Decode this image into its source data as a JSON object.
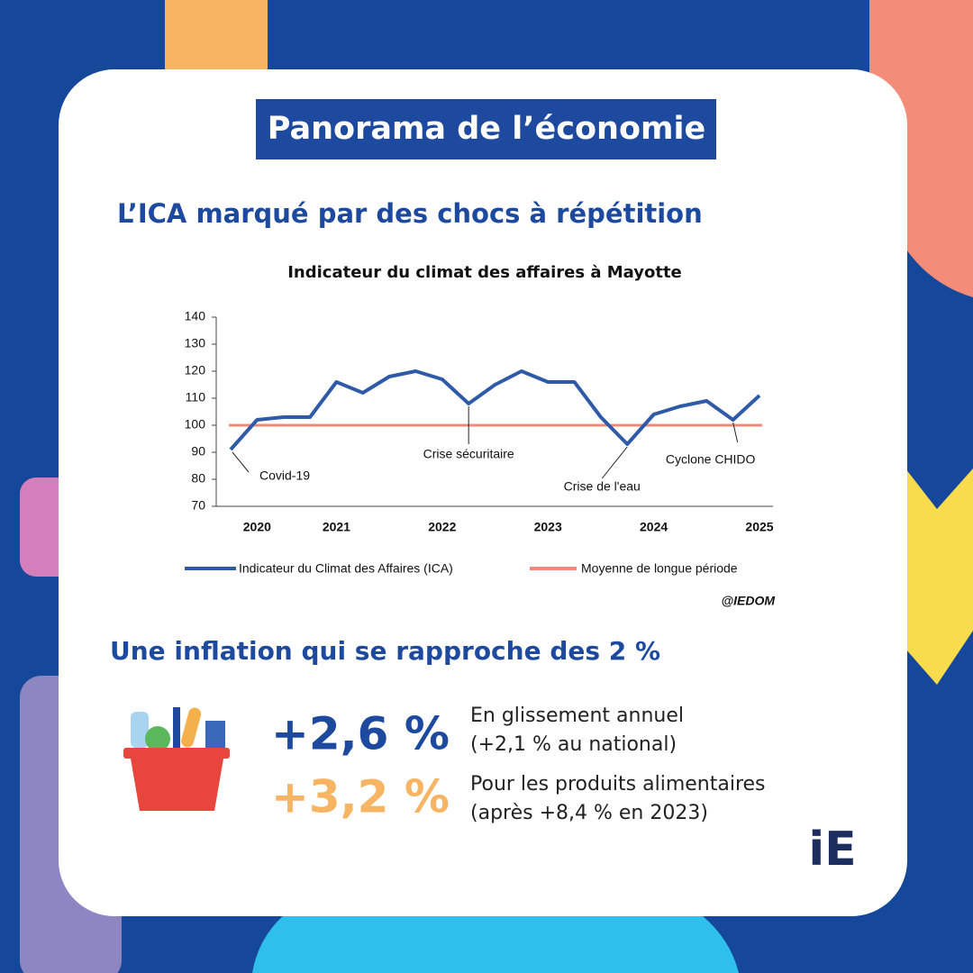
{
  "header": {
    "title": "Panorama de l’économie"
  },
  "section_1": {
    "title": "L’ICA marqué par des chocs à répétition"
  },
  "chart_data": {
    "type": "line",
    "title": "Indicateur du climat des affaires à Mayotte",
    "categories": [
      null,
      "2020",
      null,
      null,
      "2021",
      null,
      null,
      null,
      "2022",
      null,
      null,
      null,
      "2023",
      null,
      null,
      null,
      "2024",
      null,
      null,
      null,
      "2025"
    ],
    "series": [
      {
        "name": "Indicateur du Climat des Affaires (ICA)",
        "color": "#2f5aa8",
        "values": [
          91,
          102,
          103,
          103,
          116,
          112,
          118,
          120,
          117,
          108,
          115,
          120,
          116,
          116,
          103,
          93,
          104,
          107,
          109,
          102,
          111
        ]
      }
    ],
    "reference_line": {
      "name": "Moyenne de longue période",
      "value": 100,
      "color": "#f08a78"
    },
    "ylim": [
      70,
      140
    ],
    "yticks": [
      70,
      80,
      90,
      100,
      110,
      120,
      130,
      140
    ],
    "annotations": [
      {
        "text": "Covid-19",
        "index": 0
      },
      {
        "text": "Crise sécuritaire",
        "index": 9
      },
      {
        "text": "Crise de l'eau",
        "index": 15
      },
      {
        "text": "Cyclone CHIDO",
        "index": 19
      }
    ],
    "source": "@IEDOM"
  },
  "section_2": {
    "title": "Une inflation qui se rapproche des 2 %",
    "stats": [
      {
        "value": "+2,6 %",
        "line1": "En glissement annuel",
        "line2": "(+2,1 % au national)"
      },
      {
        "value": "+3,2 %",
        "line1": "Pour les produits alimentaires",
        "line2": "(après +8,4 % en 2023)"
      }
    ]
  },
  "logo": "iE"
}
